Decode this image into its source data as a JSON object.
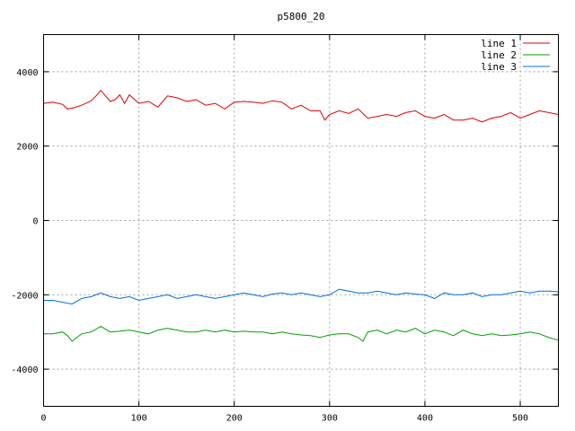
{
  "chart_data": {
    "type": "line",
    "title": "p5800_20",
    "xlabel": "",
    "ylabel": "",
    "xlim": [
      0,
      540
    ],
    "ylim": [
      -5000,
      5000
    ],
    "x_ticks": [
      0,
      100,
      200,
      300,
      400,
      500
    ],
    "y_ticks": [
      -4000,
      -2000,
      0,
      2000,
      4000
    ],
    "grid": true,
    "legend_position": "top-right",
    "series": [
      {
        "name": "line 1",
        "color": "#e00000",
        "x": [
          0,
          10,
          20,
          25,
          30,
          40,
          50,
          55,
          60,
          65,
          70,
          75,
          80,
          85,
          90,
          100,
          110,
          120,
          130,
          140,
          150,
          160,
          170,
          180,
          190,
          200,
          210,
          220,
          230,
          240,
          250,
          260,
          270,
          280,
          290,
          295,
          300,
          310,
          320,
          330,
          340,
          350,
          360,
          370,
          380,
          390,
          400,
          410,
          420,
          430,
          440,
          450,
          460,
          470,
          480,
          490,
          500,
          510,
          520,
          530,
          540
        ],
        "y": [
          3150,
          3180,
          3120,
          3000,
          3020,
          3100,
          3220,
          3350,
          3500,
          3350,
          3200,
          3250,
          3380,
          3150,
          3380,
          3150,
          3200,
          3050,
          3350,
          3300,
          3200,
          3250,
          3100,
          3150,
          3000,
          3180,
          3200,
          3180,
          3150,
          3220,
          3180,
          3000,
          3100,
          2950,
          2950,
          2700,
          2850,
          2950,
          2880,
          3000,
          2750,
          2800,
          2850,
          2800,
          2900,
          2950,
          2800,
          2750,
          2850,
          2700,
          2700,
          2750,
          2650,
          2750,
          2800,
          2900,
          2750,
          2850,
          2950,
          2900,
          2850
        ]
      },
      {
        "name": "line 2",
        "color": "#00a000",
        "x": [
          0,
          10,
          20,
          25,
          30,
          35,
          40,
          50,
          60,
          70,
          80,
          90,
          100,
          110,
          120,
          130,
          140,
          150,
          160,
          170,
          180,
          190,
          200,
          210,
          220,
          230,
          240,
          250,
          260,
          270,
          280,
          290,
          300,
          310,
          320,
          330,
          335,
          340,
          350,
          360,
          370,
          380,
          390,
          400,
          410,
          420,
          430,
          440,
          450,
          460,
          470,
          480,
          490,
          500,
          510,
          520,
          530,
          540
        ],
        "y": [
          -3050,
          -3050,
          -3000,
          -3100,
          -3250,
          -3150,
          -3050,
          -3000,
          -2850,
          -3000,
          -2980,
          -2950,
          -3000,
          -3050,
          -2950,
          -2900,
          -2950,
          -3000,
          -3000,
          -2950,
          -3000,
          -2950,
          -3000,
          -2980,
          -3000,
          -3000,
          -3050,
          -3000,
          -3050,
          -3080,
          -3100,
          -3150,
          -3080,
          -3050,
          -3050,
          -3150,
          -3250,
          -3000,
          -2950,
          -3050,
          -2950,
          -3000,
          -2900,
          -3050,
          -2950,
          -3000,
          -3100,
          -2950,
          -3050,
          -3100,
          -3050,
          -3100,
          -3080,
          -3050,
          -3000,
          -3050,
          -3150,
          -3220
        ]
      },
      {
        "name": "line 3",
        "color": "#0070e0",
        "x": [
          0,
          10,
          20,
          30,
          40,
          50,
          60,
          70,
          80,
          90,
          100,
          110,
          120,
          130,
          140,
          150,
          160,
          170,
          180,
          190,
          200,
          210,
          220,
          230,
          240,
          250,
          260,
          270,
          280,
          290,
          300,
          310,
          320,
          330,
          340,
          350,
          360,
          370,
          380,
          390,
          400,
          410,
          420,
          430,
          440,
          450,
          460,
          470,
          480,
          490,
          500,
          510,
          520,
          530,
          540
        ],
        "y": [
          -2150,
          -2150,
          -2200,
          -2250,
          -2100,
          -2050,
          -1950,
          -2050,
          -2100,
          -2050,
          -2150,
          -2100,
          -2050,
          -2000,
          -2100,
          -2050,
          -2000,
          -2050,
          -2100,
          -2050,
          -2000,
          -1950,
          -2000,
          -2050,
          -1980,
          -1950,
          -2000,
          -1950,
          -2000,
          -2050,
          -2000,
          -1850,
          -1900,
          -1950,
          -1950,
          -1900,
          -1950,
          -2000,
          -1950,
          -1980,
          -2000,
          -2100,
          -1950,
          -2000,
          -2000,
          -1950,
          -2050,
          -2000,
          -2000,
          -1950,
          -1900,
          -1950,
          -1900,
          -1900,
          -1920
        ]
      }
    ]
  }
}
